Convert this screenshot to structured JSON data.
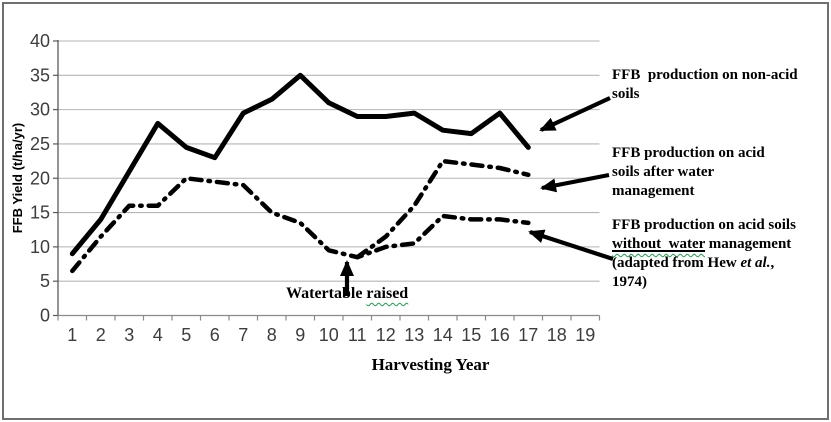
{
  "figure": {
    "legend": {
      "items": [
        {
          "text": "FFB  production on non-acid soils"
        },
        {
          "text": "FFB production on acid soils after water management"
        },
        {
          "pre": "FFB production on acid soils ",
          "underline": "without  water",
          "mid": " management (adapted from Hew ",
          "italic": "et al.",
          "post": ", 1974)"
        }
      ]
    },
    "annotation": {
      "pre": "Watertable ",
      "wavy": "raised"
    }
  },
  "chart_data": {
    "type": "line",
    "title": "",
    "xlabel": "Harvesting Year",
    "ylabel": "FFB Yield (t/ha/yr)",
    "categories": [
      "1",
      "2",
      "3",
      "4",
      "5",
      "6",
      "7",
      "8",
      "9",
      "10",
      "11",
      "12",
      "13",
      "14",
      "15",
      "16",
      "17",
      "18",
      "19"
    ],
    "ylim": [
      0,
      40
    ],
    "ytick_step": 5,
    "grid": true,
    "legend_position": "right-outside-with-arrows",
    "line_color": "#000000",
    "gridline_color": "#b5b5b5",
    "series": [
      {
        "id": "acid-without",
        "name": "FFB production on acid soils without water management (adapted from Hew et al., 1974)",
        "style": "dash-dot",
        "values": [
          6.5,
          11.5,
          16,
          16,
          20,
          19.5,
          19,
          15,
          13.5,
          9.5,
          8.5,
          10,
          10.5,
          14.5,
          14,
          14,
          13.5
        ]
      },
      {
        "id": "acid-after",
        "name": "FFB production on acid soils after water management",
        "style": "dash-dot",
        "values": [
          null,
          null,
          null,
          null,
          null,
          null,
          null,
          null,
          null,
          null,
          8.5,
          11.5,
          16,
          22.5,
          22,
          21.5,
          20.5
        ]
      },
      {
        "id": "non-acid",
        "name": "FFB production on non-acid soils",
        "style": "solid",
        "values": [
          9,
          14,
          21,
          28,
          24.5,
          23,
          29.5,
          31.5,
          35,
          31,
          29,
          29,
          29.5,
          27,
          26.5,
          29.5,
          24.5
        ]
      }
    ],
    "annotations": [
      {
        "text": "Watertable raised",
        "arrow": "up",
        "x": 10.75,
        "y": 8.5
      }
    ]
  }
}
